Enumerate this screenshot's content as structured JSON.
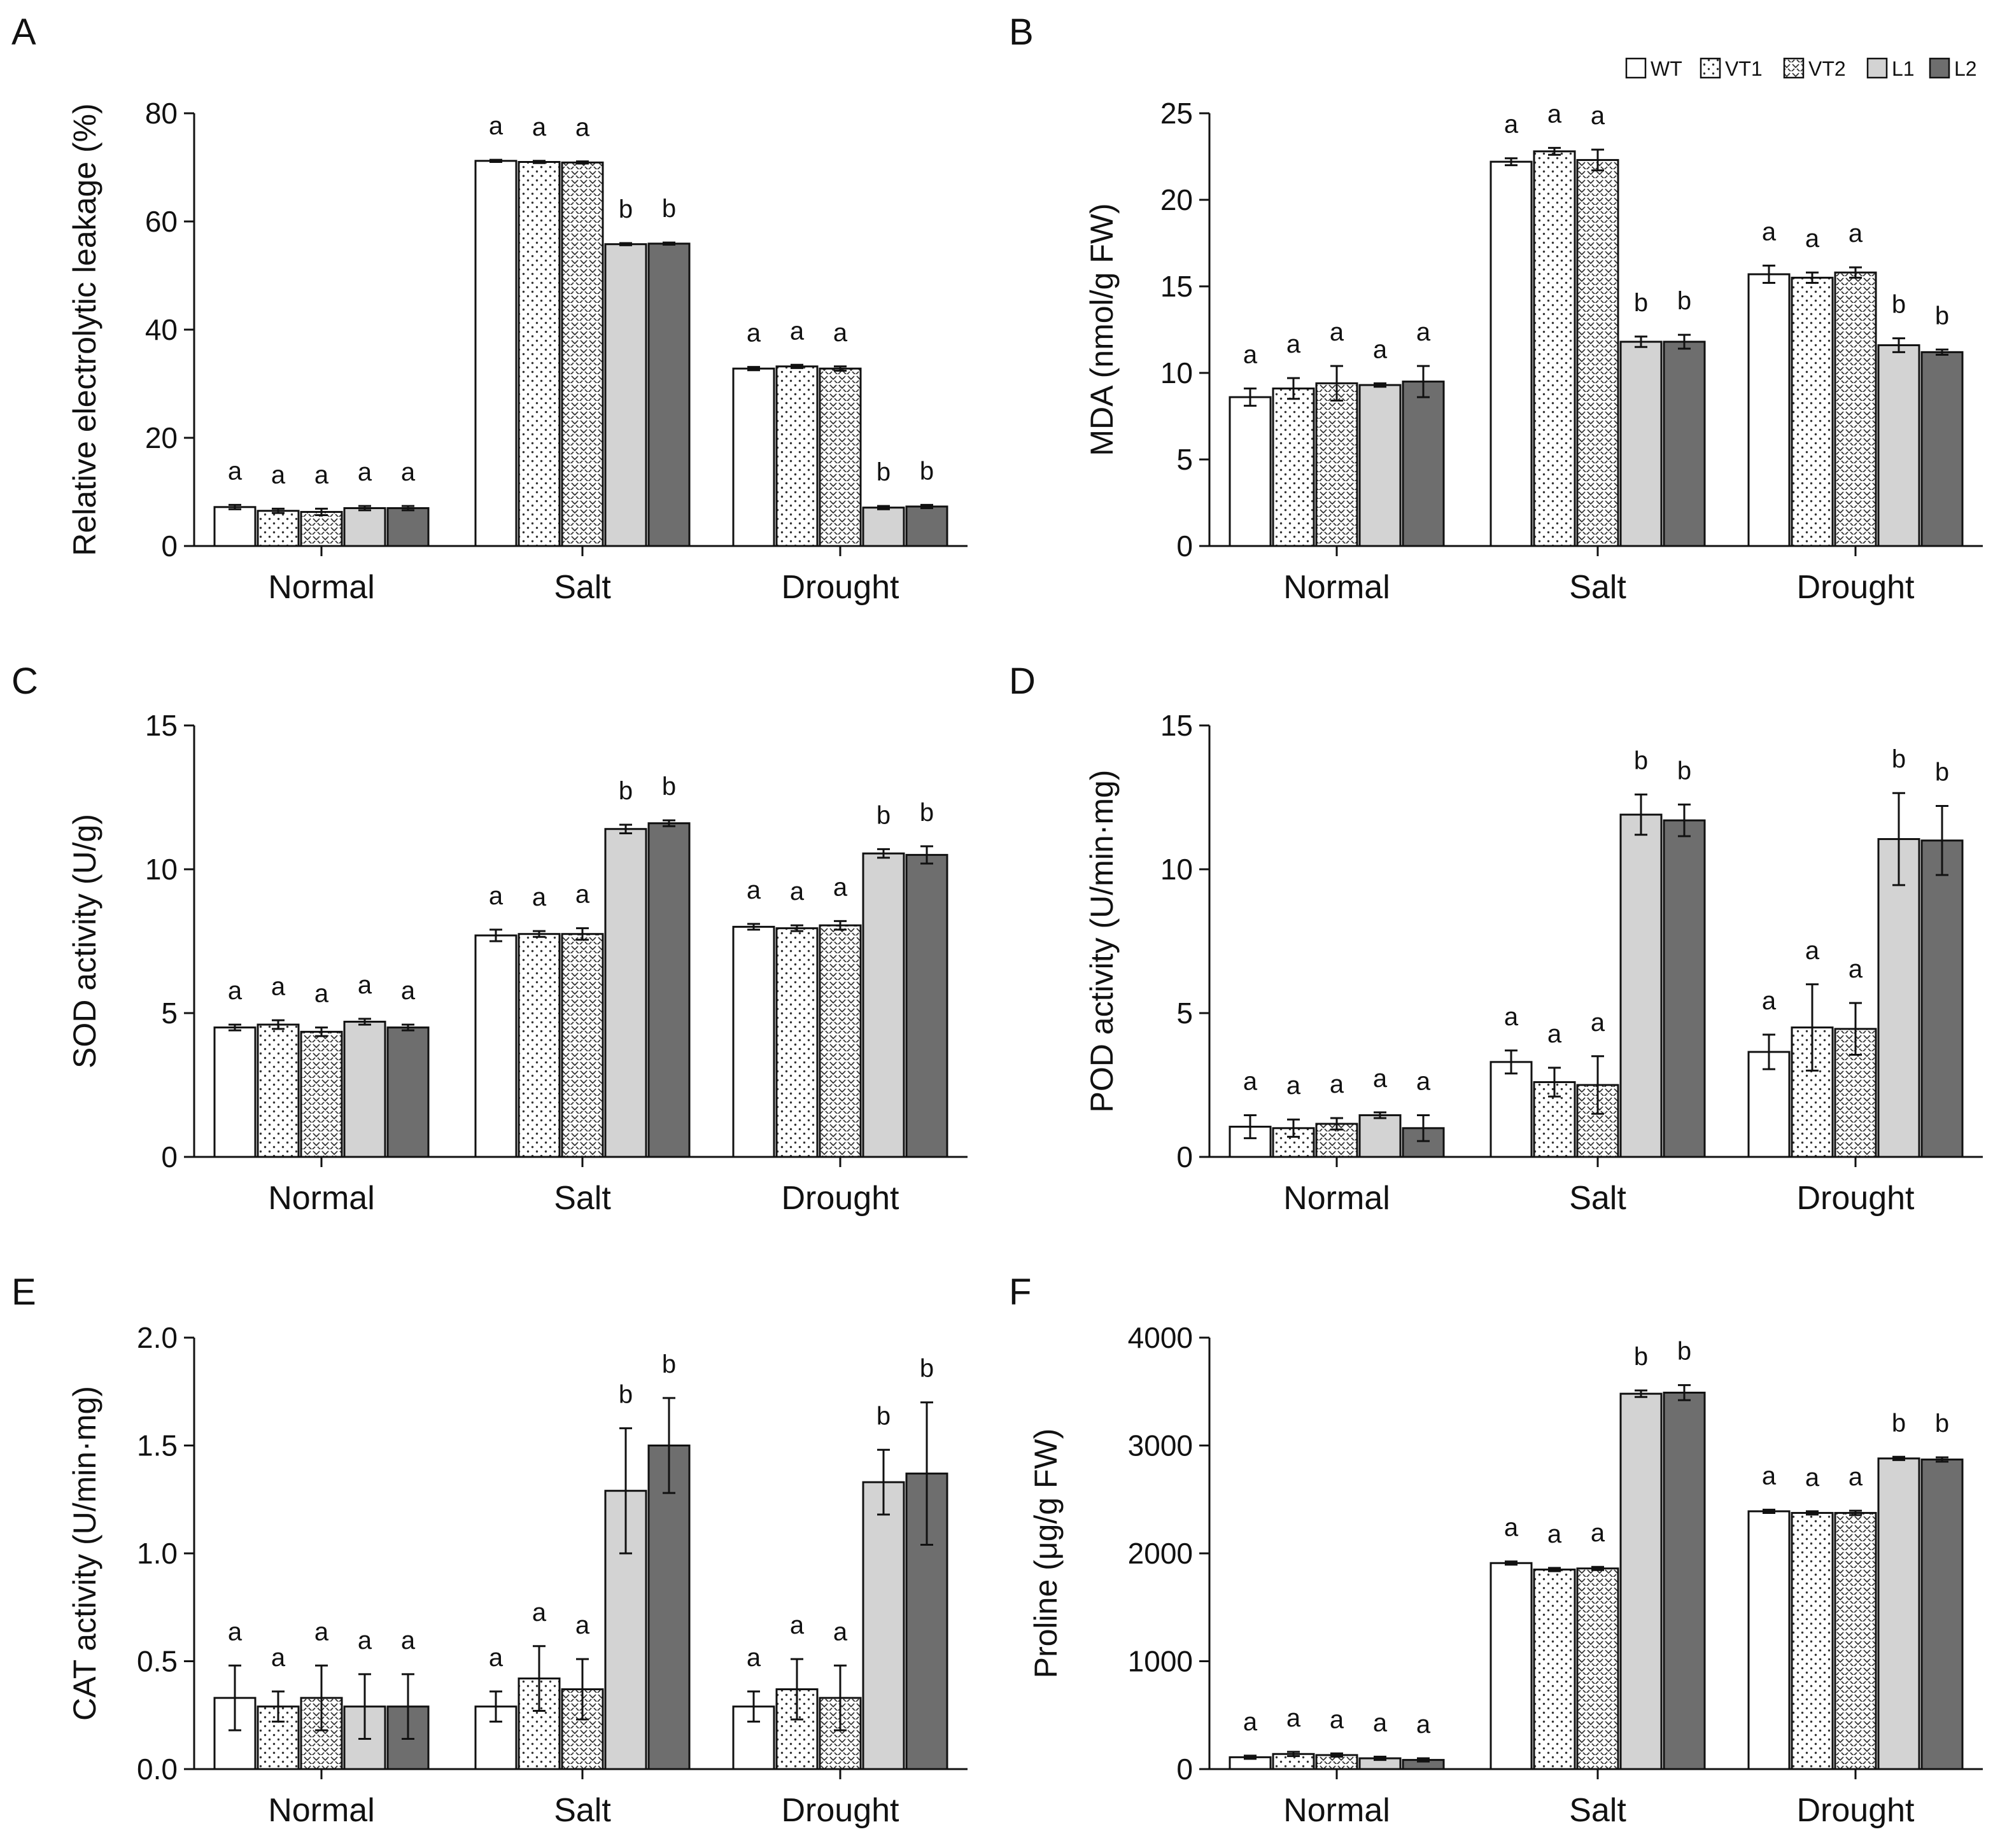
{
  "legend": [
    {
      "label": "WT",
      "color": "#ffffff",
      "pattern": "none"
    },
    {
      "label": "VT1",
      "color": "#ffffff",
      "pattern": "dots"
    },
    {
      "label": "VT2",
      "color": "#ffffff",
      "pattern": "chevrons"
    },
    {
      "label": "L1",
      "color": "#d3d3d3",
      "pattern": "none"
    },
    {
      "label": "L2",
      "color": "#6e6e6e",
      "pattern": "none"
    }
  ],
  "chart_data": [
    {
      "panel": "A",
      "type": "bar",
      "ylabel": "Relative electrolytic leakage (%)",
      "ylim": [
        0,
        80
      ],
      "yticks": [
        "0",
        "20",
        "40",
        "60",
        "80"
      ],
      "ytick_values": [
        0,
        20,
        40,
        60,
        80
      ],
      "categories": [
        "Normal",
        "Salt",
        "Drought"
      ],
      "series": [
        {
          "name": "WT",
          "values": [
            7.2,
            71.2,
            32.8
          ],
          "errors": [
            0.4,
            0.2,
            0.3
          ]
        },
        {
          "name": "VT1",
          "values": [
            6.5,
            71.0,
            33.2
          ],
          "errors": [
            0.4,
            0.2,
            0.3
          ]
        },
        {
          "name": "VT2",
          "values": [
            6.3,
            70.9,
            32.8
          ],
          "errors": [
            0.6,
            0.2,
            0.4
          ]
        },
        {
          "name": "L1",
          "values": [
            7.0,
            55.8,
            7.1
          ],
          "errors": [
            0.4,
            0.2,
            0.3
          ]
        },
        {
          "name": "L2",
          "values": [
            7.0,
            55.9,
            7.3
          ],
          "errors": [
            0.4,
            0.2,
            0.3
          ]
        }
      ],
      "letters": [
        [
          "a",
          "a",
          "a",
          "a",
          "a"
        ],
        [
          "a",
          "a",
          "a",
          "b",
          "b"
        ],
        [
          "a",
          "a",
          "a",
          "b",
          "b"
        ]
      ],
      "show_legend": false
    },
    {
      "panel": "B",
      "type": "bar",
      "ylabel": "MDA (nmol/g FW)",
      "ylim": [
        0,
        25
      ],
      "yticks": [
        "0",
        "5",
        "10",
        "15",
        "20",
        "25"
      ],
      "ytick_values": [
        0,
        5,
        10,
        15,
        20,
        25
      ],
      "categories": [
        "Normal",
        "Salt",
        "Drought"
      ],
      "series": [
        {
          "name": "WT",
          "values": [
            8.6,
            22.2,
            15.7
          ],
          "errors": [
            0.5,
            0.2,
            0.5
          ]
        },
        {
          "name": "VT1",
          "values": [
            9.1,
            22.8,
            15.5
          ],
          "errors": [
            0.6,
            0.2,
            0.3
          ]
        },
        {
          "name": "VT2",
          "values": [
            9.4,
            22.3,
            15.8
          ],
          "errors": [
            1.0,
            0.6,
            0.3
          ]
        },
        {
          "name": "L1",
          "values": [
            9.3,
            11.8,
            11.6
          ],
          "errors": [
            0.1,
            0.3,
            0.4
          ]
        },
        {
          "name": "L2",
          "values": [
            9.5,
            11.8,
            11.2
          ],
          "errors": [
            0.9,
            0.4,
            0.15
          ]
        }
      ],
      "letters": [
        [
          "a",
          "a",
          "a",
          "a",
          "a"
        ],
        [
          "a",
          "a",
          "a",
          "b",
          "b"
        ],
        [
          "a",
          "a",
          "a",
          "b",
          "b"
        ]
      ],
      "show_legend": true
    },
    {
      "panel": "C",
      "type": "bar",
      "ylabel": "SOD activity (U/g)",
      "ylim": [
        0,
        15
      ],
      "yticks": [
        "0",
        "5",
        "10",
        "15"
      ],
      "ytick_values": [
        0,
        5,
        10,
        15
      ],
      "categories": [
        "Normal",
        "Salt",
        "Drought"
      ],
      "series": [
        {
          "name": "WT",
          "values": [
            4.5,
            7.7,
            8.0
          ],
          "errors": [
            0.1,
            0.2,
            0.1
          ]
        },
        {
          "name": "VT1",
          "values": [
            4.6,
            7.75,
            7.95
          ],
          "errors": [
            0.15,
            0.1,
            0.1
          ]
        },
        {
          "name": "VT2",
          "values": [
            4.35,
            7.75,
            8.05
          ],
          "errors": [
            0.15,
            0.2,
            0.15
          ]
        },
        {
          "name": "L1",
          "values": [
            4.7,
            11.4,
            10.55
          ],
          "errors": [
            0.1,
            0.15,
            0.15
          ]
        },
        {
          "name": "L2",
          "values": [
            4.5,
            11.6,
            10.5
          ],
          "errors": [
            0.1,
            0.1,
            0.3
          ]
        }
      ],
      "letters": [
        [
          "a",
          "a",
          "a",
          "a",
          "a"
        ],
        [
          "a",
          "a",
          "a",
          "b",
          "b"
        ],
        [
          "a",
          "a",
          "a",
          "b",
          "b"
        ]
      ],
      "show_legend": false
    },
    {
      "panel": "D",
      "type": "bar",
      "ylabel": "POD activity (U/min·mg)",
      "ylim": [
        0,
        15
      ],
      "yticks": [
        "0",
        "5",
        "10",
        "15"
      ],
      "ytick_values": [
        0,
        5,
        10,
        15
      ],
      "categories": [
        "Normal",
        "Salt",
        "Drought"
      ],
      "series": [
        {
          "name": "WT",
          "values": [
            1.05,
            3.3,
            3.65
          ],
          "errors": [
            0.4,
            0.4,
            0.6
          ]
        },
        {
          "name": "VT1",
          "values": [
            1.0,
            2.6,
            4.5
          ],
          "errors": [
            0.3,
            0.5,
            1.5
          ]
        },
        {
          "name": "VT2",
          "values": [
            1.15,
            2.5,
            4.45
          ],
          "errors": [
            0.2,
            1.0,
            0.9
          ]
        },
        {
          "name": "L1",
          "values": [
            1.45,
            11.9,
            11.05
          ],
          "errors": [
            0.1,
            0.7,
            1.6
          ]
        },
        {
          "name": "L2",
          "values": [
            1.0,
            11.7,
            11.0
          ],
          "errors": [
            0.45,
            0.55,
            1.2
          ]
        }
      ],
      "letters": [
        [
          "a",
          "a",
          "a",
          "a",
          "a"
        ],
        [
          "a",
          "a",
          "a",
          "b",
          "b"
        ],
        [
          "a",
          "a",
          "a",
          "b",
          "b"
        ]
      ],
      "show_legend": false
    },
    {
      "panel": "E",
      "type": "bar",
      "ylabel": "CAT activity (U/min·mg)",
      "ylim": [
        0,
        2.0
      ],
      "yticks": [
        "0.0",
        "0.5",
        "1.0",
        "1.5",
        "2.0"
      ],
      "ytick_values": [
        0,
        0.5,
        1.0,
        1.5,
        2.0
      ],
      "categories": [
        "Normal",
        "Salt",
        "Drought"
      ],
      "series": [
        {
          "name": "WT",
          "values": [
            0.33,
            0.29,
            0.29
          ],
          "errors": [
            0.15,
            0.07,
            0.07
          ]
        },
        {
          "name": "VT1",
          "values": [
            0.29,
            0.42,
            0.37
          ],
          "errors": [
            0.07,
            0.15,
            0.14
          ]
        },
        {
          "name": "VT2",
          "values": [
            0.33,
            0.37,
            0.33
          ],
          "errors": [
            0.15,
            0.14,
            0.15
          ]
        },
        {
          "name": "L1",
          "values": [
            0.29,
            1.29,
            1.33
          ],
          "errors": [
            0.15,
            0.29,
            0.15
          ]
        },
        {
          "name": "L2",
          "values": [
            0.29,
            1.5,
            1.37
          ],
          "errors": [
            0.15,
            0.22,
            0.33
          ]
        }
      ],
      "letters": [
        [
          "a",
          "a",
          "a",
          "a",
          "a"
        ],
        [
          "a",
          "a",
          "a",
          "b",
          "b"
        ],
        [
          "a",
          "a",
          "a",
          "b",
          "b"
        ]
      ],
      "show_legend": false
    },
    {
      "panel": "F",
      "type": "bar",
      "ylabel": "Proline (μg/g FW)",
      "ylim": [
        0,
        4000
      ],
      "yticks": [
        "0",
        "1000",
        "2000",
        "3000",
        "4000"
      ],
      "ytick_values": [
        0,
        1000,
        2000,
        3000,
        4000
      ],
      "categories": [
        "Normal",
        "Salt",
        "Drought"
      ],
      "series": [
        {
          "name": "WT",
          "values": [
            110,
            1910,
            2390
          ],
          "errors": [
            15,
            15,
            15
          ]
        },
        {
          "name": "VT1",
          "values": [
            140,
            1850,
            2375
          ],
          "errors": [
            20,
            15,
            15
          ]
        },
        {
          "name": "VT2",
          "values": [
            130,
            1860,
            2375
          ],
          "errors": [
            15,
            15,
            20
          ]
        },
        {
          "name": "L1",
          "values": [
            100,
            3480,
            2880
          ],
          "errors": [
            15,
            30,
            15
          ]
        },
        {
          "name": "L2",
          "values": [
            85,
            3490,
            2870
          ],
          "errors": [
            15,
            70,
            20
          ]
        }
      ],
      "letters": [
        [
          "a",
          "a",
          "a",
          "a",
          "a"
        ],
        [
          "a",
          "a",
          "a",
          "b",
          "b"
        ],
        [
          "a",
          "a",
          "a",
          "b",
          "b"
        ]
      ],
      "show_legend": false
    }
  ]
}
